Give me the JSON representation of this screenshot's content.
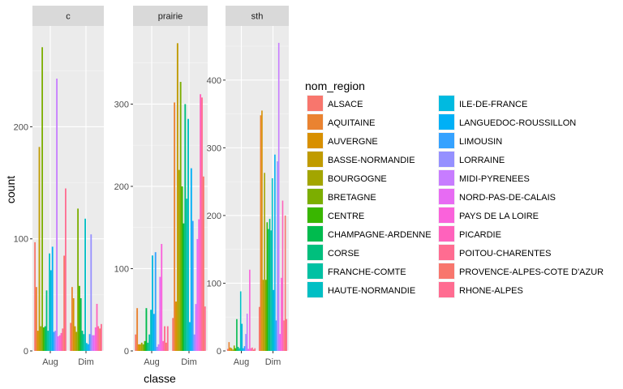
{
  "chart_data": {
    "type": "bar",
    "x_axis_title": "classe",
    "y_axis_title": "count",
    "categories": [
      "Aug",
      "Dim"
    ],
    "legend": {
      "title": "nom_region",
      "placement": "right",
      "items": [
        {
          "name": "ALSACE",
          "color": "#F8766D"
        },
        {
          "name": "AQUITAINE",
          "color": "#EA8331"
        },
        {
          "name": "AUVERGNE",
          "color": "#D89000"
        },
        {
          "name": "BASSE-NORMANDIE",
          "color": "#C09B00"
        },
        {
          "name": "BOURGOGNE",
          "color": "#A3A500"
        },
        {
          "name": "BRETAGNE",
          "color": "#7CAE00"
        },
        {
          "name": "CENTRE",
          "color": "#39B600"
        },
        {
          "name": "CHAMPAGNE-ARDENNE",
          "color": "#00BB4E"
        },
        {
          "name": "CORSE",
          "color": "#00BF7D"
        },
        {
          "name": "FRANCHE-COMTE",
          "color": "#00C1A3"
        },
        {
          "name": "HAUTE-NORMANDIE",
          "color": "#00BFC4"
        },
        {
          "name": "ILE-DE-FRANCE",
          "color": "#00BAE0"
        },
        {
          "name": "LANGUEDOC-ROUSSILLON",
          "color": "#00B0F6"
        },
        {
          "name": "LIMOUSIN",
          "color": "#35A2FF"
        },
        {
          "name": "LORRAINE",
          "color": "#9590FF"
        },
        {
          "name": "MIDI-PYRENEES",
          "color": "#C77CFF"
        },
        {
          "name": "NORD-PAS-DE-CALAIS",
          "color": "#E76BF3"
        },
        {
          "name": "PAYS DE LA LOIRE",
          "color": "#FA62DB"
        },
        {
          "name": "PICARDIE",
          "color": "#FF62BC"
        },
        {
          "name": "POITOU-CHARENTES",
          "color": "#FF6C91"
        },
        {
          "name": "PROVENCE-ALPES-COTE D'AZUR",
          "color": "#F8766D"
        },
        {
          "name": "RHONE-ALPES",
          "color": "#FF6C91"
        }
      ]
    },
    "grid": true,
    "panels": [
      {
        "strip": "c",
        "ylim": [
          0,
          290
        ],
        "yticks": [
          0,
          100,
          200
        ],
        "values": {
          "Aug": [
            97,
            57,
            18,
            182,
            22,
            271,
            21,
            22,
            54,
            18,
            87,
            72,
            93,
            17,
            18,
            243,
            13,
            14,
            16,
            20,
            85,
            145
          ],
          "Dim": [
            25,
            57,
            47,
            22,
            17,
            127,
            58,
            47,
            18,
            15,
            118,
            7,
            6,
            15,
            104,
            14,
            14,
            21,
            42,
            22,
            20,
            24
          ]
        }
      },
      {
        "strip": "prairie",
        "ylim": [
          0,
          395
        ],
        "yticks": [
          0,
          100,
          200,
          300
        ],
        "values": {
          "Aug": [
            20,
            52,
            8,
            8,
            10,
            8,
            12,
            52,
            10,
            20,
            50,
            116,
            45,
            120,
            5,
            8,
            90,
            130,
            12,
            30,
            10,
            30
          ],
          "Dim": [
            40,
            302,
            60,
            374,
            220,
            327,
            200,
            155,
            300,
            185,
            282,
            35,
            222,
            158,
            20,
            57,
            136,
            160,
            312,
            308,
            212,
            54
          ]
        }
      },
      {
        "strip": "sth",
        "ylim": [
          0,
          480
        ],
        "yticks": [
          0,
          100,
          200,
          300,
          400
        ],
        "values": {
          "Aug": [
            3,
            13,
            5,
            4,
            2,
            8,
            4,
            47,
            6,
            4,
            88,
            40,
            4,
            7,
            25,
            55,
            3,
            120,
            4,
            5,
            2,
            4
          ],
          "Dim": [
            65,
            348,
            355,
            105,
            263,
            105,
            190,
            180,
            195,
            178,
            255,
            90,
            290,
            45,
            280,
            455,
            25,
            108,
            222,
            45,
            200,
            47
          ]
        }
      }
    ]
  }
}
